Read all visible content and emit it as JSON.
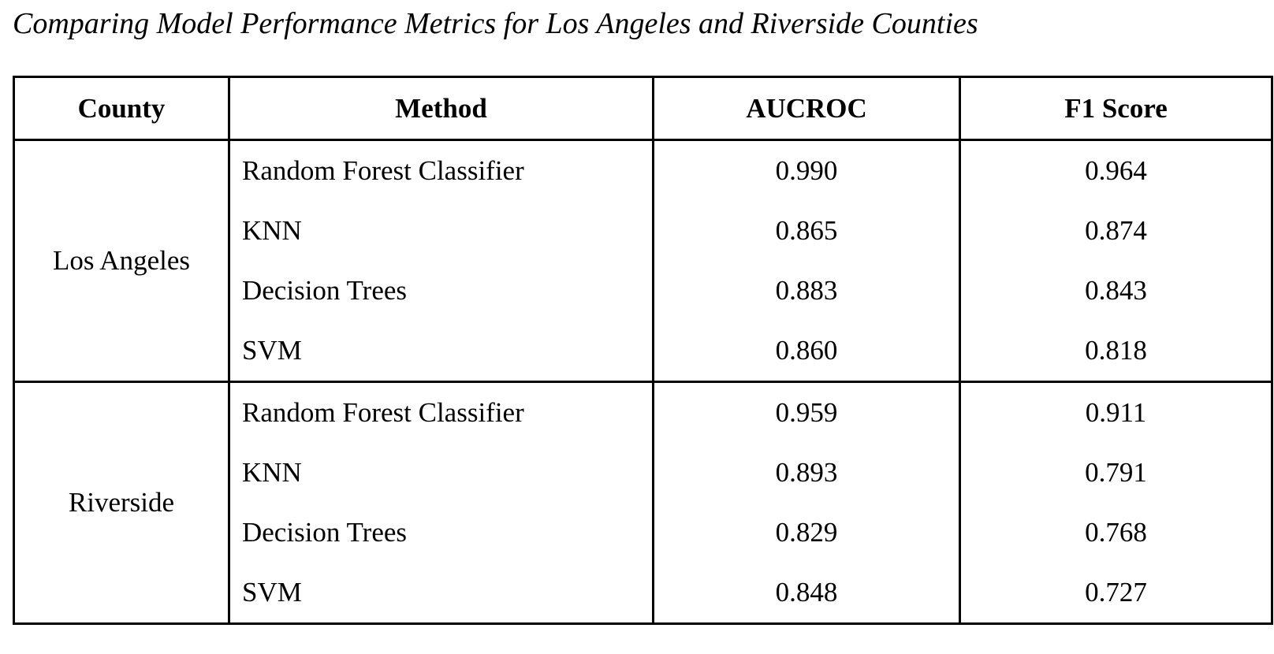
{
  "caption": "Comparing Model Performance Metrics for Los Angeles and Riverside Counties",
  "columns": [
    "County",
    "Method",
    "AUCROC",
    "F1 Score"
  ],
  "groups": [
    {
      "county": "Los Angeles",
      "rows": [
        {
          "method": "Random Forest Classifier",
          "aucroc": "0.990",
          "f1": "0.964"
        },
        {
          "method": "KNN",
          "aucroc": "0.865",
          "f1": "0.874"
        },
        {
          "method": "Decision Trees",
          "aucroc": "0.883",
          "f1": "0.843"
        },
        {
          "method": "SVM",
          "aucroc": "0.860",
          "f1": "0.818"
        }
      ]
    },
    {
      "county": "Riverside",
      "rows": [
        {
          "method": "Random Forest Classifier",
          "aucroc": "0.959",
          "f1": "0.911"
        },
        {
          "method": "KNN",
          "aucroc": "0.893",
          "f1": "0.791"
        },
        {
          "method": "Decision Trees",
          "aucroc": "0.829",
          "f1": "0.768"
        },
        {
          "method": "SVM",
          "aucroc": "0.848",
          "f1": "0.727"
        }
      ]
    }
  ]
}
